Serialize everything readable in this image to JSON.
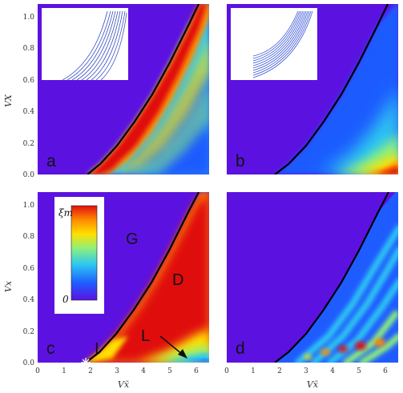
{
  "chart_data": [
    {
      "type": "heatmap",
      "panel_label": "a",
      "xlabel": "",
      "ylabel": "VX",
      "xlim": [
        0,
        6.5
      ],
      "ylim": [
        0,
        1.08
      ],
      "x_ticks": [],
      "y_ticks": [
        "0.0",
        "0.2",
        "0.4",
        "0.6",
        "0.8",
        "1.0"
      ],
      "boundary_curve": {
        "x": [
          1.9,
          2.4,
          3.0,
          3.6,
          4.2,
          4.8,
          5.4,
          6.0,
          6.5
        ],
        "y": [
          0.0,
          0.06,
          0.16,
          0.28,
          0.42,
          0.58,
          0.76,
          0.95,
          1.08
        ]
      },
      "has_inset_curves": true,
      "colormap": [
        "#5b12e0",
        "#1f5cff",
        "#2ec8f0",
        "#8ef07a",
        "#ffe000",
        "#ff8a00",
        "#e01010"
      ]
    },
    {
      "type": "heatmap",
      "panel_label": "b",
      "xlabel": "",
      "ylabel": "",
      "xlim": [
        0,
        6.5
      ],
      "ylim": [
        0,
        1.08
      ],
      "x_ticks": [],
      "y_ticks": [],
      "boundary_curve": {
        "x": [
          1.9,
          2.4,
          3.0,
          3.6,
          4.2,
          4.8,
          5.4,
          6.0,
          6.5
        ],
        "y": [
          0.0,
          0.06,
          0.16,
          0.28,
          0.42,
          0.58,
          0.76,
          0.95,
          1.08
        ]
      },
      "has_inset_curves": true
    },
    {
      "type": "heatmap",
      "panel_label": "c",
      "xlabel": "Vx̄",
      "ylabel": "Vx",
      "xlim": [
        0,
        6.5
      ],
      "ylim": [
        0,
        1.08
      ],
      "x_ticks": [
        "0",
        "1",
        "2",
        "3",
        "4",
        "5",
        "6"
      ],
      "y_ticks": [
        "0.0",
        "0.2",
        "0.4",
        "0.6",
        "0.8",
        "1.0"
      ],
      "boundary_curve": {
        "x": [
          1.9,
          2.4,
          3.0,
          3.6,
          4.2,
          4.8,
          5.4,
          6.0,
          6.5
        ],
        "y": [
          0.0,
          0.06,
          0.16,
          0.28,
          0.42,
          0.58,
          0.76,
          0.95,
          1.08
        ]
      },
      "regions": [
        "G",
        "D",
        "L",
        "I"
      ],
      "colorbar": {
        "top_label": "ξm",
        "bottom_label": "0"
      }
    },
    {
      "type": "heatmap",
      "panel_label": "d",
      "xlabel": "Vx̄",
      "ylabel": "",
      "xlim": [
        0,
        6.5
      ],
      "ylim": [
        0,
        1.08
      ],
      "x_ticks": [
        "0",
        "1",
        "2",
        "3",
        "4",
        "5",
        "6"
      ],
      "y_ticks": [],
      "boundary_curve": {
        "x": [
          1.9,
          2.4,
          3.0,
          3.6,
          4.2,
          4.8,
          5.4,
          6.0,
          6.5
        ],
        "y": [
          0.0,
          0.06,
          0.16,
          0.28,
          0.42,
          0.58,
          0.76,
          0.95,
          1.08
        ]
      }
    }
  ]
}
